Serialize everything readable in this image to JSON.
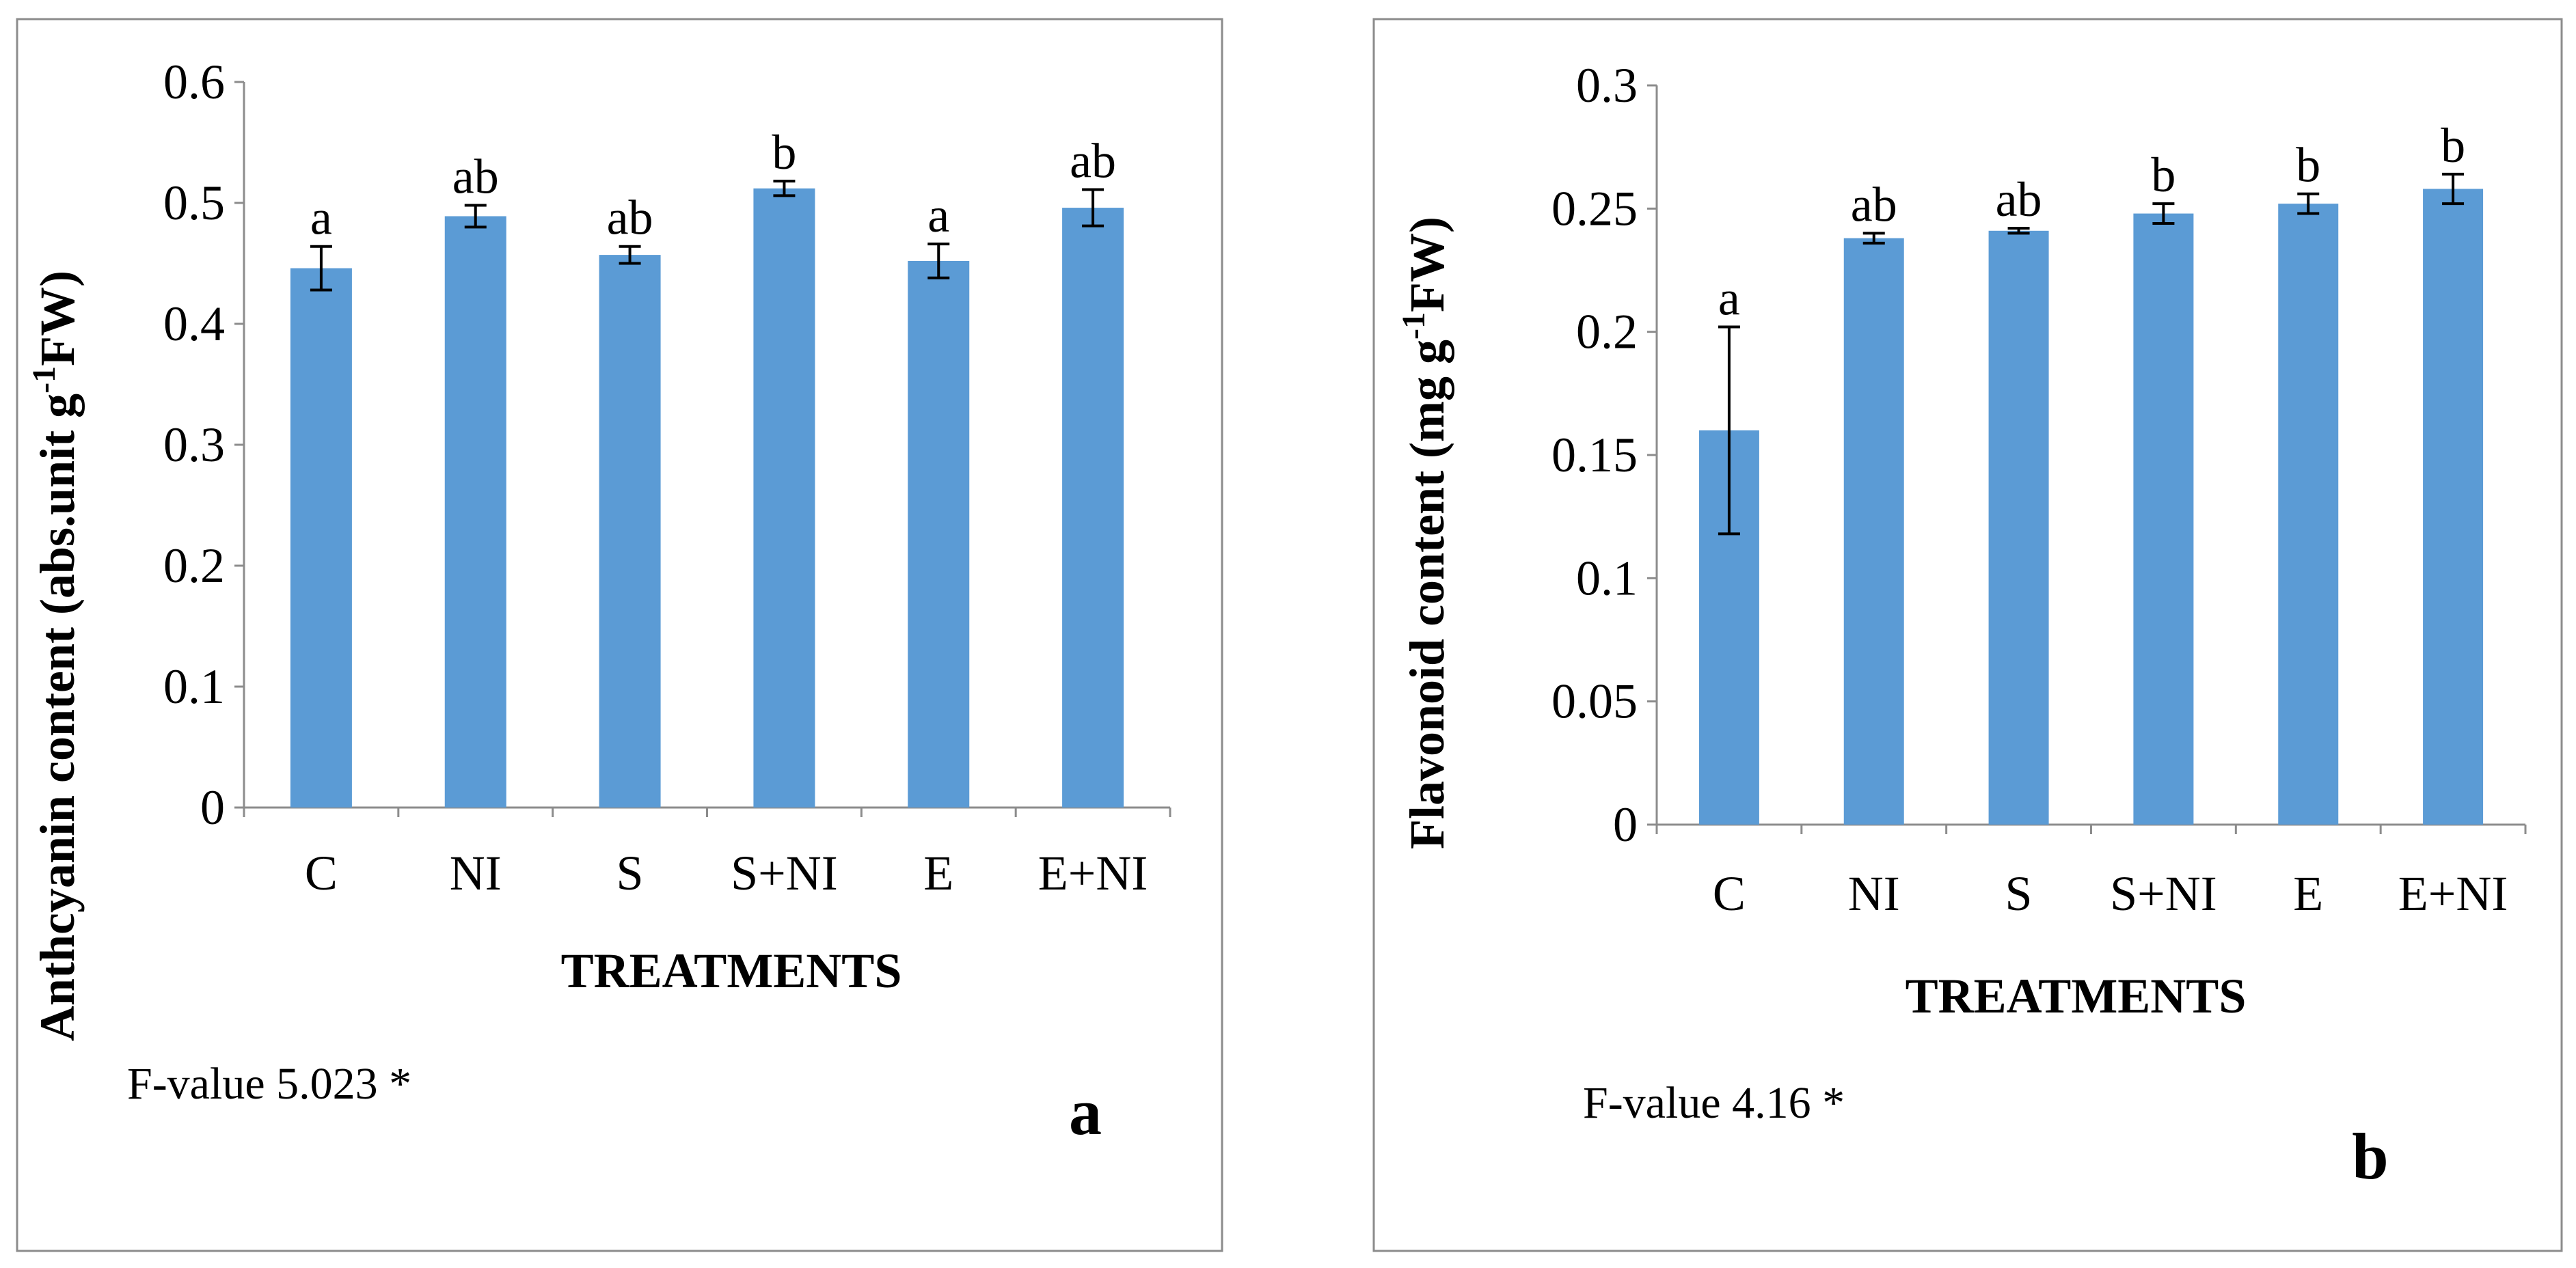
{
  "chart_data": [
    {
      "type": "bar",
      "panel_label": "a",
      "categories": [
        "C",
        "NI",
        "S",
        "S+NI",
        "E",
        "E+NI"
      ],
      "values": [
        0.446,
        0.489,
        0.457,
        0.512,
        0.452,
        0.496
      ],
      "errors": [
        0.018,
        0.009,
        0.007,
        0.006,
        0.014,
        0.015
      ],
      "significance": [
        "a",
        "ab",
        "ab",
        "b",
        "a",
        "ab"
      ],
      "xlabel": "TREATMENTS",
      "ylabel_main": "Anthcyanin content (abs.unit g",
      "ylabel_sup": "-1",
      "ylabel_end": "FW)",
      "ylim": [
        0,
        0.6
      ],
      "yticks": [
        0,
        0.1,
        0.2,
        0.3,
        0.4,
        0.5,
        0.6
      ],
      "ytick_labels": [
        "0",
        "0.1",
        "0.2",
        "0.3",
        "0.4",
        "0.5",
        "0.6"
      ],
      "annotation": "F-value 5.023 *",
      "bar_color": "#5B9BD5",
      "grid": false
    },
    {
      "type": "bar",
      "panel_label": "b",
      "categories": [
        "C",
        "NI",
        "S",
        "S+NI",
        "E",
        "E+NI"
      ],
      "values": [
        0.16,
        0.238,
        0.241,
        0.248,
        0.252,
        0.258
      ],
      "errors": [
        0.042,
        0.002,
        0.001,
        0.004,
        0.004,
        0.006
      ],
      "significance": [
        "a",
        "ab",
        "ab",
        "b",
        "b",
        "b"
      ],
      "xlabel": "TREATMENTS",
      "ylabel_main": "Flavonoid content (mg g",
      "ylabel_sup": "-1",
      "ylabel_end": "FW)",
      "ylim": [
        0,
        0.3
      ],
      "yticks": [
        0,
        0.05,
        0.1,
        0.15,
        0.2,
        0.25,
        0.3
      ],
      "ytick_labels": [
        "0",
        "0.05",
        "0.1",
        "0.15",
        "0.2",
        "0.25",
        "0.3"
      ],
      "annotation": "F-value 4.16 *",
      "bar_color": "#5B9BD5",
      "grid": false
    }
  ]
}
